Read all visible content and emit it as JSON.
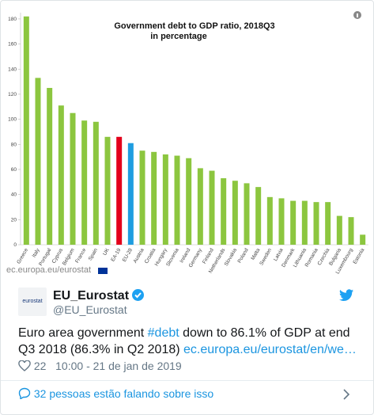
{
  "chart_data": {
    "type": "bar",
    "title": "Government debt to GDP ratio, 2018Q3",
    "subtitle": "in percentage",
    "categories": [
      "Greece",
      "Italy",
      "Portugal",
      "Cyprus",
      "Belgium",
      "France",
      "Spain",
      "UK",
      "EA-19",
      "EU-28",
      "Austria",
      "Croatia",
      "Hungary",
      "Slovenia",
      "Ireland",
      "Germany",
      "Finland",
      "Netherlands",
      "Slovakia",
      "Poland",
      "Malta",
      "Sweden",
      "Latvia",
      "Denmark",
      "Lithuania",
      "Romania",
      "Czechia",
      "Bulgaria",
      "Luxembourg",
      "Estonia"
    ],
    "values": [
      182,
      133,
      125,
      111,
      105,
      99,
      98,
      86,
      86,
      81,
      75,
      74,
      72,
      71,
      69,
      61,
      59,
      53,
      51,
      49,
      46,
      38,
      37,
      35,
      35,
      34,
      34,
      23,
      22,
      8
    ],
    "colors": [
      "#8cc63f",
      "#8cc63f",
      "#8cc63f",
      "#8cc63f",
      "#8cc63f",
      "#8cc63f",
      "#8cc63f",
      "#8cc63f",
      "#e3001b",
      "#1f9de0",
      "#8cc63f",
      "#8cc63f",
      "#8cc63f",
      "#8cc63f",
      "#8cc63f",
      "#8cc63f",
      "#8cc63f",
      "#8cc63f",
      "#8cc63f",
      "#8cc63f",
      "#8cc63f",
      "#8cc63f",
      "#8cc63f",
      "#8cc63f",
      "#8cc63f",
      "#8cc63f",
      "#8cc63f",
      "#8cc63f",
      "#8cc63f",
      "#8cc63f"
    ],
    "ylim": [
      0,
      185
    ],
    "yticks": [
      0,
      20,
      40,
      60,
      80,
      100,
      120,
      140,
      160,
      180
    ],
    "grid": false,
    "source": "ec.europa.eu/eurostat"
  },
  "tweet": {
    "avatar_text": "eurostat",
    "name": "EU_Eurostat",
    "handle": "@EU_Eurostat",
    "text": [
      "Euro area government ",
      "#debt",
      " down to 86.1% of GDP at end Q3 2018 (86.3% in Q2 2018) ",
      "ec.europa.eu/eurostat/en/we…"
    ],
    "likes": "22",
    "time": "10:00 - 21 de jan de 2019",
    "footer": "32 pessoas estão falando sobre isso"
  }
}
